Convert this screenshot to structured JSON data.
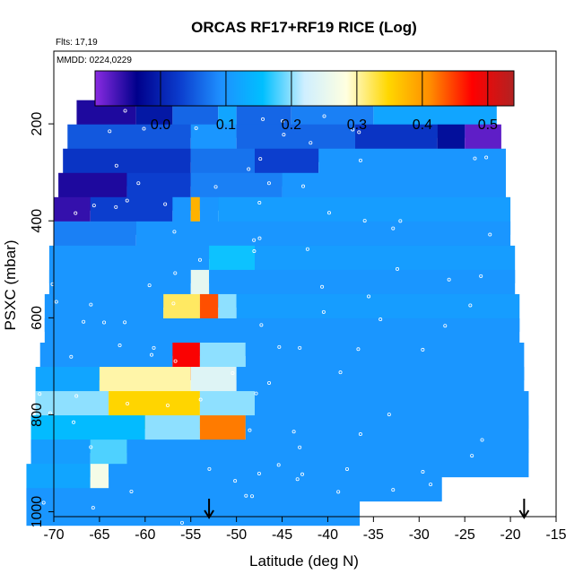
{
  "chart_data": {
    "type": "heatmap",
    "title": "ORCAS RF17+RF19 RICE (Log)",
    "flights_label": "Flts: 17,19",
    "dates_label": "MMDD: 0224,0229",
    "xlabel": "Latitude (deg N)",
    "ylabel": "PSXC (mbar)",
    "xlim": [
      -70,
      -15
    ],
    "ylim": [
      1010,
      50
    ],
    "x_ticks": [
      -70,
      -65,
      -60,
      -55,
      -50,
      -45,
      -40,
      -35,
      -30,
      -25,
      -20,
      -15
    ],
    "y_ticks": [
      200,
      400,
      600,
      800,
      1000
    ],
    "colorbar": {
      "range": [
        -0.1,
        0.54
      ],
      "ticks": [
        0.0,
        0.1,
        0.2,
        0.3,
        0.4,
        0.5
      ],
      "colors": [
        "#8a2be2",
        "#00008b",
        "#0b3bcc",
        "#1e90ff",
        "#00bfff",
        "#cfefff",
        "#ffffe0",
        "#ffd700",
        "#ff8c00",
        "#ff0000",
        "#b22222"
      ]
    },
    "arrows_lat": [
      -53,
      -18.5
    ],
    "rows": [
      {
        "p": 190,
        "lat": [
          -67.5,
          -21.5
        ],
        "segs": [
          [
            -67.5,
            -61,
            -0.05
          ],
          [
            -61,
            -57,
            -0.01
          ],
          [
            -57,
            -52,
            0.06
          ],
          [
            -52,
            -50,
            0.12
          ],
          [
            -50,
            -44,
            0.06
          ],
          [
            -44,
            -35,
            0.08
          ],
          [
            -35,
            -21.5,
            0.12
          ]
        ]
      },
      {
        "p": 240,
        "lat": [
          -68.5,
          -21
        ],
        "segs": [
          [
            -68.5,
            -55,
            0.05
          ],
          [
            -55,
            -50,
            0.1
          ],
          [
            -50,
            -37,
            0.06
          ],
          [
            -37,
            -28,
            0.02
          ],
          [
            -28,
            -25,
            -0.02
          ],
          [
            -25,
            -21,
            -0.08
          ]
        ]
      },
      {
        "p": 290,
        "lat": [
          -69,
          -20.5
        ],
        "segs": [
          [
            -69,
            -55,
            0.02
          ],
          [
            -55,
            -48,
            0.07
          ],
          [
            -48,
            -41,
            0.03
          ],
          [
            -41,
            -20.5,
            0.1
          ]
        ]
      },
      {
        "p": 340,
        "lat": [
          -69.5,
          -20.5
        ],
        "segs": [
          [
            -69.5,
            -62,
            -0.05
          ],
          [
            -62,
            -55,
            0.03
          ],
          [
            -55,
            -45,
            0.08
          ],
          [
            -45,
            -20.5,
            0.1
          ]
        ]
      },
      {
        "p": 390,
        "lat": [
          -70,
          -20
        ],
        "segs": [
          [
            -70,
            -66,
            -0.06
          ],
          [
            -66,
            -57,
            0.03
          ],
          [
            -57,
            -55,
            0.1
          ],
          [
            -55,
            -54,
            0.38
          ],
          [
            -54,
            -52,
            0.1
          ],
          [
            -52,
            -20,
            0.11
          ]
        ]
      },
      {
        "p": 440,
        "lat": [
          -70,
          -20
        ],
        "segs": [
          [
            -70,
            -61,
            0.08
          ],
          [
            -61,
            -20,
            0.1
          ]
        ]
      },
      {
        "p": 490,
        "lat": [
          -70.5,
          -19.5
        ],
        "segs": [
          [
            -70.5,
            -53,
            0.1
          ],
          [
            -53,
            -48,
            0.16
          ],
          [
            -48,
            -19.5,
            0.11
          ]
        ]
      },
      {
        "p": 540,
        "lat": [
          -70.5,
          -19.5
        ],
        "segs": [
          [
            -70.5,
            -55,
            0.1
          ],
          [
            -55,
            -53,
            0.25
          ],
          [
            -53,
            -19.5,
            0.1
          ]
        ]
      },
      {
        "p": 590,
        "lat": [
          -71,
          -19
        ],
        "segs": [
          [
            -71,
            -58,
            0.1
          ],
          [
            -58,
            -54,
            0.32
          ],
          [
            -54,
            -52,
            0.44
          ],
          [
            -52,
            -50,
            0.2
          ],
          [
            -50,
            -19,
            0.11
          ]
        ]
      },
      {
        "p": 640,
        "lat": [
          -71,
          -19
        ],
        "segs": [
          [
            -71,
            -19,
            0.1
          ]
        ]
      },
      {
        "p": 690,
        "lat": [
          -71.5,
          -18.5
        ],
        "segs": [
          [
            -71.5,
            -57,
            0.1
          ],
          [
            -57,
            -54,
            0.48
          ],
          [
            -54,
            -49,
            0.2
          ],
          [
            -49,
            -18.5,
            0.1
          ]
        ]
      },
      {
        "p": 740,
        "lat": [
          -72,
          -18.5
        ],
        "segs": [
          [
            -72,
            -65,
            0.12
          ],
          [
            -65,
            -55,
            0.3
          ],
          [
            -55,
            -50,
            0.24
          ],
          [
            -50,
            -18.5,
            0.1
          ]
        ]
      },
      {
        "p": 790,
        "lat": [
          -72,
          -18
        ],
        "segs": [
          [
            -72,
            -64,
            0.2
          ],
          [
            -64,
            -54,
            0.35
          ],
          [
            -54,
            -48,
            0.2
          ],
          [
            -48,
            -18,
            0.1
          ]
        ]
      },
      {
        "p": 840,
        "lat": [
          -72.5,
          -18
        ],
        "segs": [
          [
            -72.5,
            -60,
            0.15
          ],
          [
            -60,
            -54,
            0.2
          ],
          [
            -54,
            -49,
            0.42
          ],
          [
            -49,
            -18,
            0.1
          ]
        ]
      },
      {
        "p": 890,
        "lat": [
          -72.5,
          -18
        ],
        "segs": [
          [
            -72.5,
            -66,
            0.11
          ],
          [
            -66,
            -62,
            0.18
          ],
          [
            -62,
            -18,
            0.1
          ]
        ]
      },
      {
        "p": 940,
        "lat": [
          -73,
          -27.5
        ],
        "segs": [
          [
            -73,
            -66,
            0.12
          ],
          [
            -66,
            -64,
            0.27
          ],
          [
            -64,
            -27.5,
            0.1
          ]
        ]
      },
      {
        "p": 990,
        "lat": [
          -73,
          -36.5
        ],
        "segs": [
          [
            -73,
            -36.5,
            0.1
          ]
        ]
      }
    ]
  }
}
